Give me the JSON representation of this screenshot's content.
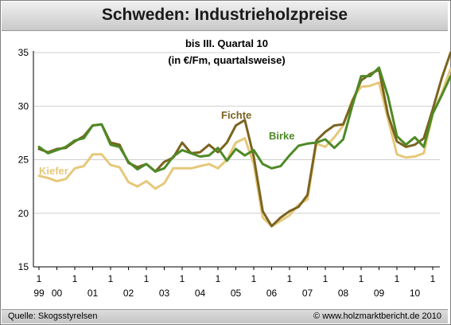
{
  "title": "Schweden: Industrieholzpreise",
  "footer": {
    "source": "Quelle: Skogsstyrelsen",
    "copyright": "© www.holzmarktbericht.de  2010"
  },
  "colors": {
    "Fichte": "#7a6420",
    "Birke": "#4d8a26",
    "Kiefer": "#e6c87a",
    "grid": "#cfcfcf",
    "axis": "#000000"
  },
  "chart_data": {
    "type": "line",
    "title": "Schweden: Industrieholzpreise",
    "subtitle": [
      "bis III. Quartal 10",
      "(in €/Fm, quartalsweise)"
    ],
    "xlabel": "",
    "ylabel": "",
    "ylim": [
      15,
      35
    ],
    "yticks": [
      15,
      20,
      25,
      30,
      35
    ],
    "grid": true,
    "x_quarters": [
      "1/99",
      "2/99",
      "3/99",
      "4/99",
      "1/00",
      "2/00",
      "3/00",
      "4/00",
      "1/01",
      "2/01",
      "3/01",
      "4/01",
      "1/02",
      "2/02",
      "3/02",
      "4/02",
      "1/03",
      "2/03",
      "3/03",
      "4/03",
      "1/04",
      "2/04",
      "3/04",
      "4/04",
      "1/05",
      "2/05",
      "3/05",
      "4/05",
      "1/06",
      "2/06",
      "3/06",
      "4/06",
      "1/07",
      "2/07",
      "3/07",
      "4/07",
      "1/08",
      "2/08",
      "3/08",
      "4/08",
      "1/09",
      "2/09",
      "3/09",
      "4/09",
      "1/10",
      "2/10",
      "3/10"
    ],
    "x_tick_labels": [
      {
        "top": "1",
        "bottom": "99"
      },
      {
        "top": "",
        "bottom": "00"
      },
      {
        "top": "1",
        "bottom": ""
      },
      {
        "top": "",
        "bottom": "01"
      },
      {
        "top": "1",
        "bottom": ""
      },
      {
        "top": "",
        "bottom": "02"
      },
      {
        "top": "1",
        "bottom": ""
      },
      {
        "top": "",
        "bottom": "03"
      },
      {
        "top": "1",
        "bottom": ""
      },
      {
        "top": "",
        "bottom": "04"
      },
      {
        "top": "1",
        "bottom": ""
      },
      {
        "top": "",
        "bottom": "05"
      },
      {
        "top": "1",
        "bottom": ""
      },
      {
        "top": "",
        "bottom": "06"
      },
      {
        "top": "1",
        "bottom": ""
      },
      {
        "top": "",
        "bottom": "07"
      },
      {
        "top": "1",
        "bottom": ""
      },
      {
        "top": "",
        "bottom": "08"
      },
      {
        "top": "1",
        "bottom": ""
      },
      {
        "top": "",
        "bottom": "09"
      },
      {
        "top": "1",
        "bottom": ""
      },
      {
        "top": "",
        "bottom": "10"
      },
      {
        "top": "1",
        "bottom": ""
      }
    ],
    "series": [
      {
        "name": "Fichte",
        "values": [
          26.0,
          25.7,
          26.0,
          26.1,
          26.7,
          27.2,
          28.2,
          28.3,
          26.6,
          26.4,
          24.7,
          24.3,
          24.6,
          23.9,
          24.8,
          25.2,
          26.6,
          25.6,
          25.7,
          26.4,
          25.7,
          26.6,
          28.2,
          28.7,
          25.3,
          20.2,
          18.8,
          19.6,
          20.2,
          20.6,
          21.7,
          26.8,
          27.6,
          28.2,
          28.3,
          30.4,
          32.4,
          33.0,
          33.4,
          29.2,
          26.7,
          26.2,
          26.4,
          27.0,
          29.7,
          32.6,
          35.0
        ]
      },
      {
        "name": "Birke",
        "values": [
          26.2,
          25.6,
          25.9,
          26.2,
          26.8,
          27.0,
          28.2,
          28.3,
          26.4,
          26.2,
          24.8,
          24.1,
          24.6,
          23.9,
          24.2,
          25.3,
          25.9,
          25.6,
          25.3,
          25.4,
          26.1,
          24.9,
          26.0,
          25.4,
          25.9,
          24.6,
          24.2,
          24.4,
          25.4,
          26.3,
          26.5,
          26.6,
          26.9,
          26.1,
          26.9,
          30.0,
          32.8,
          32.8,
          33.6,
          30.9,
          27.2,
          26.4,
          27.1,
          26.2,
          29.3,
          31.0,
          32.8
        ]
      },
      {
        "name": "Kiefer",
        "values": [
          23.5,
          23.3,
          23.0,
          23.2,
          24.2,
          24.4,
          25.5,
          25.5,
          24.5,
          24.3,
          22.9,
          22.5,
          23.0,
          22.3,
          22.8,
          24.2,
          24.2,
          24.2,
          24.4,
          24.6,
          24.2,
          25.0,
          26.6,
          27.0,
          24.6,
          19.6,
          18.8,
          19.3,
          19.8,
          20.8,
          21.3,
          26.5,
          26.2,
          27.1,
          28.2,
          30.6,
          31.8,
          31.9,
          32.2,
          28.8,
          25.5,
          25.2,
          25.3,
          25.6,
          29.3,
          31.2,
          33.5
        ]
      }
    ],
    "series_labels": [
      "Fichte",
      "Birke",
      "Kiefer"
    ]
  }
}
